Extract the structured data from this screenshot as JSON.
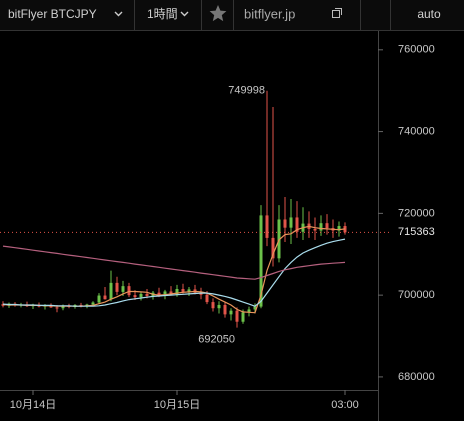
{
  "toolbar": {
    "symbol": "bitFlyer BTCJPY",
    "interval": "1時間",
    "site": "bitflyer.jp",
    "scale_mode": "auto"
  },
  "chart_data": {
    "type": "candlestick",
    "categories": [
      null,
      null,
      null,
      null,
      null,
      "10月14日",
      null,
      null,
      null,
      null,
      null,
      null,
      null,
      null,
      null,
      null,
      null,
      null,
      null,
      null,
      null,
      null,
      null,
      null,
      null,
      null,
      null,
      null,
      null,
      "10月15日",
      null,
      null,
      null,
      null,
      null,
      null,
      null,
      null,
      null,
      null,
      null,
      null,
      null,
      null,
      null,
      null,
      null,
      null,
      null,
      null,
      null,
      null,
      null,
      null,
      null,
      null,
      null,
      "03:00"
    ],
    "open": [
      697800,
      697400,
      697900,
      697500,
      697700,
      697300,
      697600,
      697200,
      697500,
      697000,
      696800,
      697400,
      697100,
      697600,
      697300,
      697700,
      698200,
      699900,
      699000,
      703000,
      700800,
      702200,
      700000,
      699500,
      700300,
      699800,
      700600,
      700000,
      700900,
      700200,
      701500,
      700800,
      701400,
      700600,
      700100,
      698300,
      696800,
      697600,
      695300,
      696200,
      693500,
      695800,
      696500,
      697200,
      719500,
      714000,
      709000,
      718500,
      716500,
      719000,
      715500,
      717500,
      716200,
      715800,
      717600,
      716400,
      715800,
      716900
    ],
    "high": [
      698500,
      698200,
      698300,
      698100,
      698400,
      697900,
      698200,
      697800,
      698000,
      697600,
      697700,
      697900,
      697800,
      698100,
      697900,
      698500,
      700500,
      702000,
      706000,
      704500,
      703500,
      703000,
      701200,
      700800,
      701500,
      701000,
      701800,
      701300,
      702200,
      702500,
      702800,
      702000,
      702500,
      701800,
      701000,
      699200,
      698500,
      698200,
      696800,
      697000,
      696500,
      697200,
      698000,
      722000,
      749998,
      746000,
      722000,
      724000,
      723500,
      723000,
      721500,
      720500,
      719000,
      719500,
      719800,
      718500,
      718000,
      717800
    ],
    "low": [
      697000,
      696900,
      697200,
      697000,
      697100,
      696600,
      697000,
      696500,
      696900,
      695800,
      696300,
      696800,
      696700,
      697000,
      696800,
      697300,
      697800,
      698900,
      698500,
      700000,
      699800,
      699500,
      698800,
      698700,
      699200,
      698900,
      699500,
      699000,
      699900,
      699600,
      700400,
      699800,
      700200,
      699000,
      697800,
      696000,
      695500,
      694500,
      693800,
      692050,
      693000,
      694800,
      695500,
      696800,
      712000,
      707000,
      708000,
      713000,
      712500,
      714000,
      713500,
      714000,
      713500,
      714500,
      714800,
      714000,
      714300,
      714800
    ],
    "close": [
      697400,
      697900,
      697500,
      697700,
      697300,
      697600,
      697200,
      697500,
      697000,
      696800,
      697400,
      697100,
      697600,
      697300,
      697700,
      698200,
      699900,
      699000,
      703000,
      700800,
      702200,
      700000,
      699500,
      700300,
      699800,
      700600,
      700000,
      700900,
      700200,
      701500,
      700800,
      701400,
      700600,
      700100,
      698300,
      696800,
      697600,
      695300,
      696200,
      693500,
      695800,
      696500,
      697200,
      719500,
      714000,
      709000,
      718500,
      716500,
      719000,
      715500,
      717500,
      716200,
      715800,
      717600,
      716400,
      715800,
      716900,
      715363
    ],
    "up_color": "#6cc24a",
    "down_color": "#e2554a",
    "series": [
      {
        "color": "#e8935a",
        "values": [
          697700,
          697600,
          697600,
          697600,
          697500,
          697500,
          697500,
          697400,
          697400,
          697300,
          697300,
          697300,
          697300,
          697300,
          697400,
          697500,
          697900,
          698300,
          699000,
          699600,
          700300,
          700900,
          700900,
          700800,
          700700,
          700200,
          700000,
          700100,
          700300,
          700500,
          700700,
          700800,
          700900,
          700800,
          700500,
          699800,
          699000,
          698300,
          697600,
          696500,
          695900,
          695800,
          695700,
          700000,
          706000,
          710000,
          713500,
          714800,
          715000,
          716000,
          716500,
          716800,
          716500,
          716300,
          716200,
          716100,
          716000,
          716200
        ]
      },
      {
        "color": "#a9dcec",
        "values": [
          697800,
          697700,
          697700,
          697600,
          697600,
          697600,
          697500,
          697500,
          697500,
          697400,
          697400,
          697400,
          697300,
          697300,
          697300,
          697300,
          697400,
          697600,
          697900,
          698200,
          698600,
          698900,
          699100,
          699300,
          699500,
          699700,
          699800,
          699900,
          700000,
          700100,
          700200,
          700300,
          700400,
          700500,
          700500,
          700300,
          700000,
          699700,
          699300,
          698800,
          698300,
          697800,
          697300,
          698500,
          700500,
          702500,
          704500,
          706500,
          708000,
          709300,
          710300,
          711000,
          711600,
          712200,
          712700,
          713100,
          713400,
          713700
        ]
      },
      {
        "color": "#b5607e",
        "values": [
          712000,
          711800,
          711600,
          711400,
          711200,
          711000,
          710800,
          710600,
          710400,
          710200,
          710000,
          709800,
          709600,
          709400,
          709200,
          709000,
          708800,
          708600,
          708400,
          708200,
          708000,
          707800,
          707600,
          707400,
          707200,
          707000,
          706800,
          706600,
          706400,
          706200,
          706000,
          705800,
          705600,
          705400,
          705200,
          705000,
          704800,
          704600,
          704400,
          704200,
          704100,
          704000,
          703900,
          704300,
          704800,
          705300,
          705800,
          706200,
          706500,
          706800,
          707000,
          707200,
          707400,
          707600,
          707700,
          707800,
          707900,
          708000
        ]
      }
    ],
    "ylim": [
      676800,
      764600
    ],
    "yticks": [
      680000,
      700000,
      720000,
      740000,
      760000
    ],
    "high_label": 749998,
    "low_label": 692050,
    "last_price": 715363,
    "last_price_color": "#e2554a"
  }
}
